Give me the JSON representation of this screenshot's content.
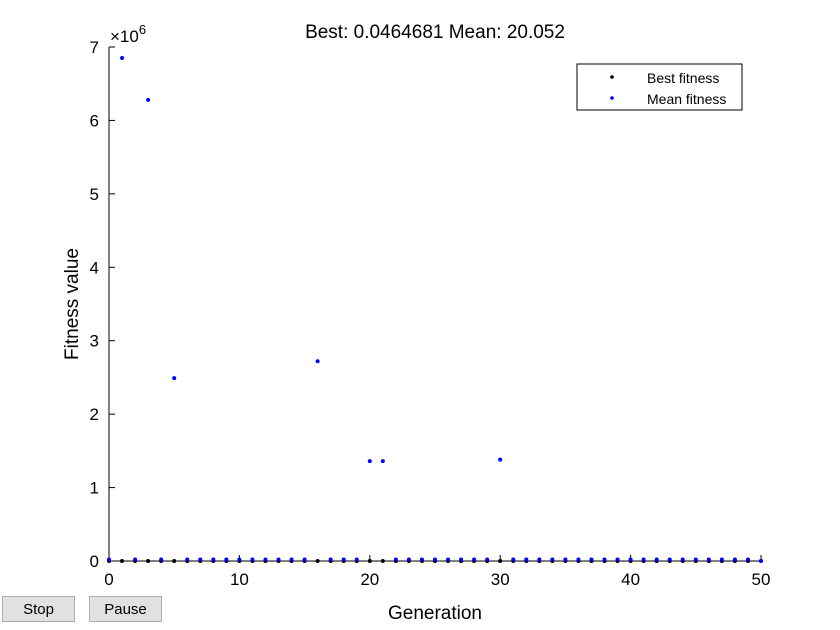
{
  "chart_data": {
    "type": "scatter",
    "title": "Best: 0.0464681 Mean: 20.052",
    "xlabel": "Generation",
    "ylabel": "Fitness value",
    "y_exponent_label": "×10",
    "y_exponent": "6",
    "xlim": [
      0,
      50
    ],
    "ylim": [
      0,
      7000000
    ],
    "x_ticks": [
      "0",
      "10",
      "20",
      "30",
      "40",
      "50"
    ],
    "y_ticks": [
      "0",
      "1",
      "2",
      "3",
      "4",
      "5",
      "6",
      "7"
    ],
    "legend_position": "top-right",
    "grid": false,
    "series": [
      {
        "name": "Best fitness",
        "color": "#000000",
        "x": [
          0,
          1,
          2,
          3,
          4,
          5,
          6,
          7,
          8,
          9,
          10,
          11,
          12,
          13,
          14,
          15,
          16,
          17,
          18,
          19,
          20,
          21,
          22,
          23,
          24,
          25,
          26,
          27,
          28,
          29,
          30,
          31,
          32,
          33,
          34,
          35,
          36,
          37,
          38,
          39,
          40,
          41,
          42,
          43,
          44,
          45,
          46,
          47,
          48,
          49,
          50
        ],
        "values": [
          0.05,
          0.05,
          0.05,
          0.05,
          0.05,
          0.05,
          0.05,
          0.05,
          0.05,
          0.05,
          0.05,
          0.05,
          0.05,
          0.05,
          0.05,
          0.05,
          0.05,
          0.05,
          0.05,
          0.05,
          0.05,
          0.05,
          0.05,
          0.05,
          0.05,
          0.05,
          0.05,
          0.05,
          0.05,
          0.05,
          0.05,
          0.05,
          0.05,
          0.05,
          0.05,
          0.05,
          0.05,
          0.05,
          0.05,
          0.05,
          0.05,
          0.05,
          0.05,
          0.05,
          0.05,
          0.05,
          0.05,
          0.05,
          0.05,
          0.05,
          0.0464681
        ]
      },
      {
        "name": "Mean fitness",
        "color": "#0000ff",
        "x": [
          0,
          1,
          2,
          3,
          4,
          5,
          6,
          7,
          8,
          9,
          10,
          11,
          12,
          13,
          14,
          15,
          16,
          17,
          18,
          19,
          20,
          21,
          22,
          23,
          24,
          25,
          26,
          27,
          28,
          29,
          30,
          31,
          32,
          33,
          34,
          35,
          36,
          37,
          38,
          39,
          40,
          41,
          42,
          43,
          44,
          45,
          46,
          47,
          48,
          49,
          50
        ],
        "values": [
          20000,
          6850000,
          20000,
          6280000,
          20000,
          2490000,
          20000,
          20000,
          20000,
          20000,
          20000,
          20000,
          20000,
          20000,
          20000,
          20000,
          2720000,
          20000,
          20000,
          20000,
          1360000,
          1360000,
          20000,
          20000,
          20000,
          20000,
          20000,
          20000,
          20000,
          20000,
          1380000,
          20000,
          20000,
          20000,
          20000,
          20000,
          20000,
          20000,
          20000,
          20000,
          20000,
          20000,
          20000,
          20000,
          20000,
          20000,
          20000,
          20000,
          20000,
          20000,
          20.052
        ]
      }
    ]
  },
  "controls": {
    "stop_label": "Stop",
    "pause_label": "Pause"
  }
}
